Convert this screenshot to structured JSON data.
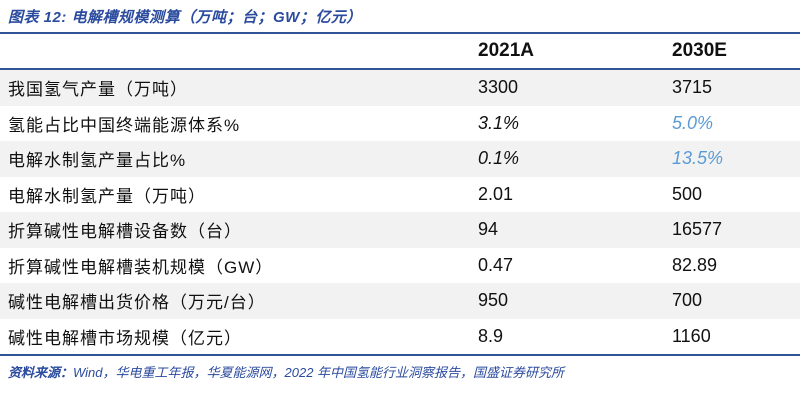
{
  "figure": {
    "title": "图表 12:  电解槽规模测算（万吨；台；GW；亿元）"
  },
  "table": {
    "columns": [
      "",
      "2021A",
      "2030E"
    ],
    "rows": [
      {
        "label": "我国氢气产量（万吨）",
        "y2021": "3300",
        "y2030": "3715",
        "italic": false,
        "blue2030": false
      },
      {
        "label": "氢能占比中国终端能源体系%",
        "y2021": "3.1%",
        "y2030": "5.0%",
        "italic": true,
        "blue2030": true
      },
      {
        "label": "电解水制氢产量占比%",
        "y2021": "0.1%",
        "y2030": "13.5%",
        "italic": true,
        "blue2030": true
      },
      {
        "label": "电解水制氢产量（万吨）",
        "y2021": "2.01",
        "y2030": "500",
        "italic": false,
        "blue2030": false
      },
      {
        "label": "折算碱性电解槽设备数（台）",
        "y2021": "94",
        "y2030": "16577",
        "italic": false,
        "blue2030": false
      },
      {
        "label": "折算碱性电解槽装机规模（GW）",
        "y2021": "0.47",
        "y2030": "82.89",
        "italic": false,
        "blue2030": false
      },
      {
        "label": "碱性电解槽出货价格（万元/台）",
        "y2021": "950",
        "y2030": "700",
        "italic": false,
        "blue2030": false
      },
      {
        "label": "碱性电解槽市场规模（亿元）",
        "y2021": "8.9",
        "y2030": "1160",
        "italic": false,
        "blue2030": false
      }
    ]
  },
  "footer": {
    "prefix": "资料来源：",
    "text": "Wind，华电重工年报，华夏能源网，2022 年中国氢能行业洞察报告，国盛证券研究所"
  },
  "colors": {
    "accent_blue": "#2B4B9E",
    "border_blue": "#2F5597",
    "forecast_light_blue": "#5B9BD5",
    "row_stripe_gray": "#F2F2F2",
    "text_black": "#111111"
  }
}
